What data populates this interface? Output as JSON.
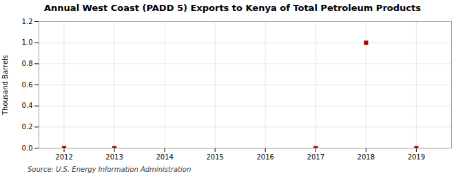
{
  "chart_data": {
    "type": "scatter",
    "title": "Annual West Coast (PADD 5) Exports to Kenya of Total Petroleum Products",
    "ylabel": "Thousand Barrels",
    "source": "Source: U.S. Energy Information Administration",
    "x": [
      2012,
      2013,
      2017,
      2018,
      2019
    ],
    "values": [
      0,
      0,
      0,
      1.0,
      0
    ],
    "color": "#aa0000",
    "marker": "square",
    "xlim": [
      2011.5,
      2019.7
    ],
    "ylim": [
      0.0,
      1.2
    ],
    "xticks": [
      2012,
      2013,
      2014,
      2015,
      2016,
      2017,
      2018,
      2019
    ],
    "yticks": [
      {
        "value": 0.0,
        "label": "0.0"
      },
      0.2,
      0.4,
      0.6,
      0.8,
      {
        "value": 1.0,
        "label": "1.0"
      },
      1.2
    ],
    "grid": true
  }
}
